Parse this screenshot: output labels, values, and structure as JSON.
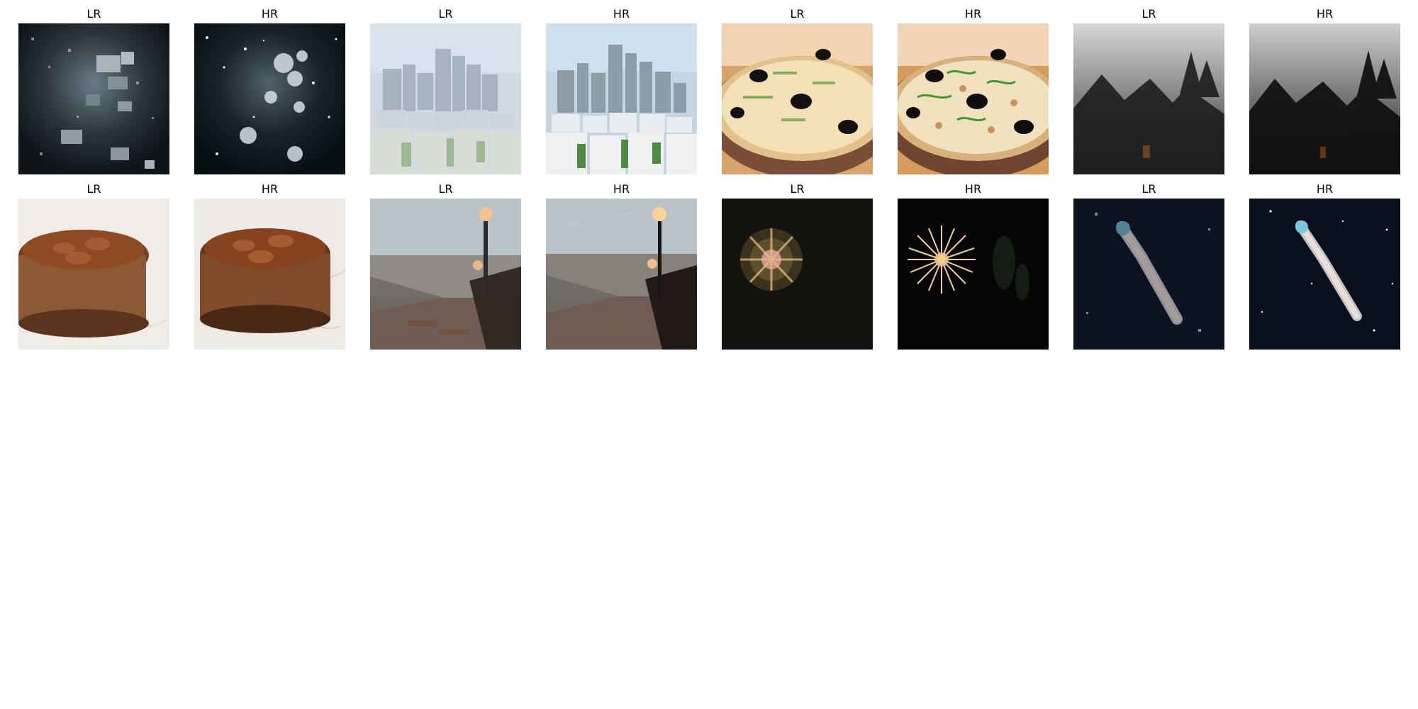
{
  "figure": {
    "panels": [
      {
        "title": "LR",
        "content": "snow-night-lr"
      },
      {
        "title": "HR",
        "content": "snow-night-hr"
      },
      {
        "title": "LR",
        "content": "city-skyline-lr"
      },
      {
        "title": "HR",
        "content": "city-skyline-hr"
      },
      {
        "title": "LR",
        "content": "pizza-lr"
      },
      {
        "title": "HR",
        "content": "pizza-hr"
      },
      {
        "title": "LR",
        "content": "foggy-forest-lr"
      },
      {
        "title": "HR",
        "content": "foggy-forest-hr"
      },
      {
        "title": "LR",
        "content": "chocolate-mousse-lr"
      },
      {
        "title": "HR",
        "content": "chocolate-mousse-hr"
      },
      {
        "title": "LR",
        "content": "bridge-lamp-lr"
      },
      {
        "title": "HR",
        "content": "bridge-lamp-hr"
      },
      {
        "title": "LR",
        "content": "firework-lr"
      },
      {
        "title": "HR",
        "content": "firework-hr"
      },
      {
        "title": "LR",
        "content": "comet-lr"
      },
      {
        "title": "HR",
        "content": "comet-hr"
      }
    ]
  }
}
